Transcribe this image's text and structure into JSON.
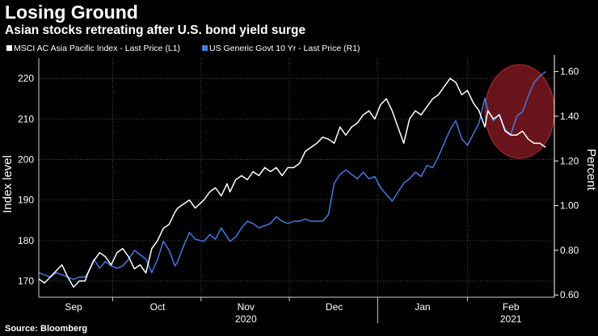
{
  "title": "Losing Ground",
  "subtitle": "Asian stocks retreating after U.S. bond yield surge",
  "source": "Source: Bloomberg",
  "colors": {
    "background": "#000000",
    "msci": "#ffffff",
    "yield": "#3f7be4",
    "highlight": "#8c1b23"
  },
  "chart_data": {
    "type": "line",
    "title": "Losing Ground",
    "subtitle": "Asian stocks retreating after U.S. bond yield surge",
    "x_periods": [
      "Sep",
      "Oct",
      "Nov",
      "Dec",
      "Jan",
      "Feb"
    ],
    "x_years": [
      "2020",
      "2021"
    ],
    "x_range_days": [
      0,
      178
    ],
    "y_left": {
      "label": "Index level",
      "ticks": [
        "170",
        "180",
        "190",
        "200",
        "210",
        "220"
      ],
      "range": [
        166,
        225
      ]
    },
    "y_right": {
      "label": "Percent",
      "ticks": [
        "0.60",
        "0.80",
        "1.00",
        "1.20",
        "1.40",
        "1.60"
      ],
      "range": [
        0.59,
        1.66
      ]
    },
    "grid": true,
    "legend_position": "top-left",
    "series": [
      {
        "name": "MSCI AC Asia Pacific Index - Last Price (L1)",
        "axis": "left",
        "x": [
          0,
          2,
          4,
          6,
          8,
          10,
          12,
          14,
          16,
          17,
          19,
          21,
          23,
          25,
          27,
          29,
          31,
          33,
          35,
          37,
          39,
          41,
          43,
          45,
          47,
          48,
          50,
          52,
          54,
          57,
          59,
          61,
          63,
          65,
          66,
          68,
          70,
          72,
          74,
          76,
          78,
          80,
          82,
          84,
          86,
          88,
          90,
          92,
          94,
          96,
          98,
          100,
          102,
          104,
          106,
          108,
          110,
          112,
          114,
          116,
          118,
          120,
          122,
          124,
          126,
          128,
          130,
          132,
          134,
          136,
          138,
          140,
          142,
          144,
          146,
          148,
          150,
          152,
          154,
          155,
          157,
          159,
          161,
          163,
          165,
          167,
          169,
          171,
          173,
          175
        ],
        "values": [
          170.5,
          169.5,
          171,
          172.5,
          174,
          171,
          168.5,
          170,
          170,
          172,
          175,
          177,
          176,
          174,
          177,
          178,
          176,
          173,
          174,
          172,
          178,
          180,
          183,
          184,
          187,
          188,
          189,
          190,
          188,
          190,
          192,
          193,
          191,
          194,
          192,
          195,
          196,
          195,
          197,
          196,
          198,
          197,
          198,
          196,
          198,
          198,
          199,
          202,
          203,
          204,
          205.5,
          205,
          204,
          208,
          206,
          208,
          209,
          211,
          212,
          210,
          213.5,
          215,
          212,
          208,
          204,
          210,
          212,
          211,
          213,
          215,
          216,
          218,
          220,
          219,
          216,
          217,
          214,
          212,
          208,
          212,
          210,
          211,
          207,
          206,
          206,
          207,
          205,
          204,
          204,
          203
        ]
      },
      {
        "name": "US Generic Govt 10 Yr - Last Price (R1)",
        "axis": "right",
        "x": [
          0,
          2,
          4,
          6,
          8,
          10,
          12,
          14,
          16,
          17,
          19,
          21,
          23,
          25,
          27,
          29,
          31,
          33,
          35,
          37,
          39,
          41,
          43,
          45,
          47,
          48,
          50,
          52,
          54,
          57,
          59,
          61,
          63,
          65,
          66,
          68,
          70,
          72,
          74,
          76,
          78,
          80,
          82,
          84,
          86,
          88,
          90,
          92,
          94,
          96,
          98,
          100,
          102,
          104,
          106,
          108,
          110,
          112,
          114,
          116,
          118,
          120,
          122,
          124,
          126,
          128,
          130,
          132,
          134,
          136,
          138,
          140,
          142,
          144,
          146,
          148,
          150,
          152,
          154,
          155,
          157,
          159,
          161,
          163,
          165,
          167,
          169,
          171,
          173,
          175
        ],
        "values": [
          0.7,
          0.69,
          0.68,
          0.7,
          0.69,
          0.68,
          0.67,
          0.68,
          0.68,
          0.7,
          0.76,
          0.72,
          0.75,
          0.73,
          0.72,
          0.73,
          0.76,
          0.8,
          0.78,
          0.76,
          0.7,
          0.76,
          0.84,
          0.8,
          0.73,
          0.75,
          0.82,
          0.88,
          0.85,
          0.84,
          0.87,
          0.85,
          0.9,
          0.86,
          0.84,
          0.86,
          0.9,
          0.93,
          0.92,
          0.9,
          0.91,
          0.92,
          0.95,
          0.93,
          0.92,
          0.93,
          0.93,
          0.94,
          0.93,
          0.93,
          0.93,
          0.96,
          1.1,
          1.14,
          1.16,
          1.14,
          1.12,
          1.15,
          1.12,
          1.13,
          1.08,
          1.05,
          1.02,
          1.06,
          1.1,
          1.12,
          1.15,
          1.13,
          1.18,
          1.17,
          1.22,
          1.28,
          1.34,
          1.38,
          1.3,
          1.27,
          1.32,
          1.37,
          1.48,
          1.43,
          1.38,
          1.41,
          1.34,
          1.32,
          1.4,
          1.42,
          1.49,
          1.55,
          1.58,
          1.6
        ]
      }
    ],
    "annotations": [
      {
        "type": "ellipse-highlight",
        "x_range_days": [
          154,
          178
        ],
        "description": "highlighted recent period"
      }
    ]
  }
}
